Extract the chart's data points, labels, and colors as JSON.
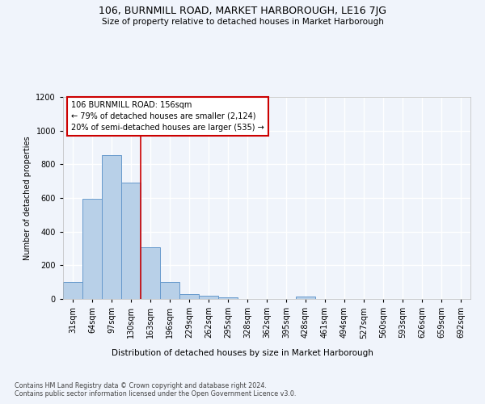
{
  "title1": "106, BURNMILL ROAD, MARKET HARBOROUGH, LE16 7JG",
  "title2": "Size of property relative to detached houses in Market Harborough",
  "xlabel": "Distribution of detached houses by size in Market Harborough",
  "ylabel": "Number of detached properties",
  "footer1": "Contains HM Land Registry data © Crown copyright and database right 2024.",
  "footer2": "Contains public sector information licensed under the Open Government Licence v3.0.",
  "categories": [
    "31sqm",
    "64sqm",
    "97sqm",
    "130sqm",
    "163sqm",
    "196sqm",
    "229sqm",
    "262sqm",
    "295sqm",
    "328sqm",
    "362sqm",
    "395sqm",
    "428sqm",
    "461sqm",
    "494sqm",
    "527sqm",
    "560sqm",
    "593sqm",
    "626sqm",
    "659sqm",
    "692sqm"
  ],
  "values": [
    100,
    595,
    855,
    690,
    305,
    100,
    30,
    20,
    10,
    0,
    0,
    0,
    15,
    0,
    0,
    0,
    0,
    0,
    0,
    0,
    0
  ],
  "bar_color": "#b8d0e8",
  "bar_edge_color": "#6699cc",
  "vline_color": "#cc0000",
  "annotation_text": "106 BURNMILL ROAD: 156sqm\n← 79% of detached houses are smaller (2,124)\n20% of semi-detached houses are larger (535) →",
  "annotation_box_color": "#ffffff",
  "annotation_box_edge_color": "#cc0000",
  "ylim": [
    0,
    1200
  ],
  "yticks": [
    0,
    200,
    400,
    600,
    800,
    1000,
    1200
  ],
  "background_color": "#f0f4fb",
  "plot_bg_color": "#f0f4fb",
  "grid_color": "#ffffff",
  "vline_pos": 3.5
}
